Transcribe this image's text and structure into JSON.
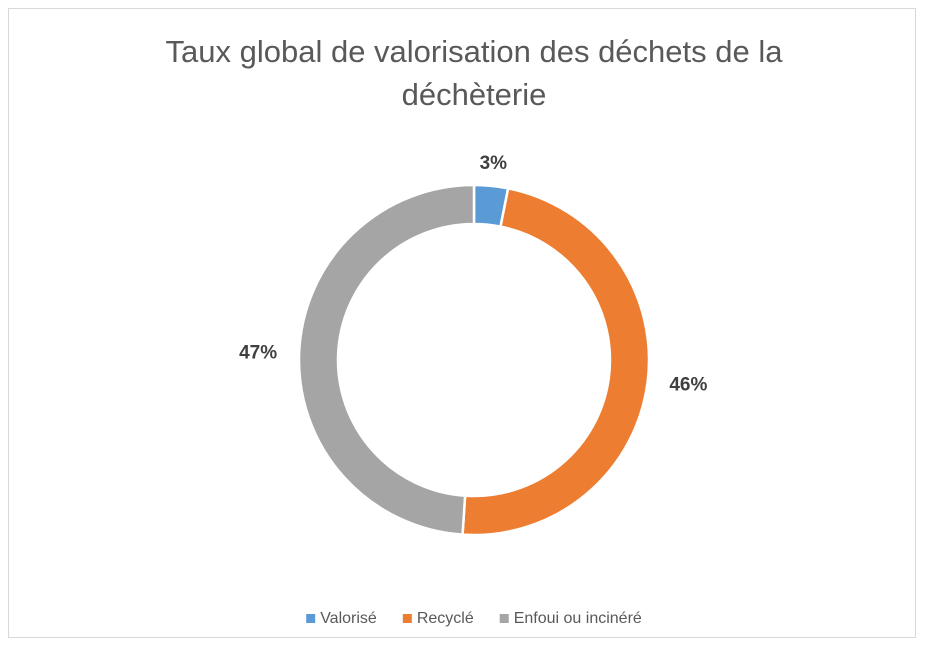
{
  "chart_data": {
    "type": "donut",
    "title": "Taux global de valorisation des déchets de la déchèterie",
    "categories": [
      "Valorisé",
      "Recyclé",
      "Enfoui ou incinéré"
    ],
    "values": [
      3,
      46,
      47
    ],
    "value_labels": [
      "3%",
      "46%",
      "47%"
    ],
    "colors": [
      "#5b9bd5",
      "#ed7d31",
      "#a5a5a5"
    ],
    "legend": "bottom"
  }
}
